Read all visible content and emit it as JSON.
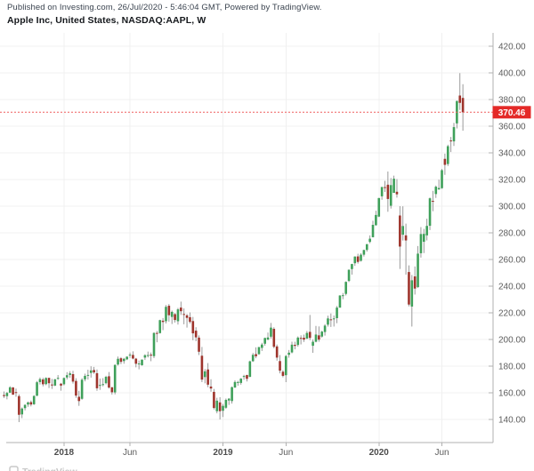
{
  "header": {
    "published_line": "Published on Investing.com, 26/Jul/2020 - 5:46:04 GMT, Powered by TradingView.",
    "title_line": "Apple Inc, United States, NASDAQ:AAPL, W"
  },
  "watermark": "TradingView",
  "price_axis": {
    "tick_labels": [
      "420.00",
      "400.00",
      "380.00",
      "360.00",
      "340.00",
      "320.00",
      "300.00",
      "280.00",
      "260.00",
      "240.00",
      "220.00",
      "200.00",
      "180.00",
      "160.00",
      "140.00"
    ],
    "last_price_label": "370.46"
  },
  "time_axis": {
    "ticks": [
      {
        "label": "2018",
        "week_index": 20,
        "bold": true
      },
      {
        "label": "Jun",
        "week_index": 42,
        "bold": false
      },
      {
        "label": "2019",
        "week_index": 73,
        "bold": true
      },
      {
        "label": "Jun",
        "week_index": 94,
        "bold": false
      },
      {
        "label": "2020",
        "week_index": 125,
        "bold": true
      },
      {
        "label": "Jun",
        "week_index": 146,
        "bold": false
      }
    ]
  },
  "colors": {
    "up_fill": "#3fa05a",
    "down_fill": "#9e342c",
    "wick": "#8f8f8f",
    "grid": "#f0f0f0",
    "axis_line": "#b0b0b0",
    "tick_text": "#5c5c5c",
    "year_text": "#4d4d4d",
    "last_price_line": "#ef5e5e",
    "badge_bg": "#e42a28",
    "badge_text": "#ffffff"
  },
  "chart_data": {
    "type": "candlestick",
    "title": "Apple Inc, United States, NASDAQ:AAPL, W",
    "symbol": "NASDAQ:AAPL",
    "interval": "W",
    "last_price": 370.46,
    "ylim": [
      130,
      430
    ],
    "y_ticks": [
      140,
      160,
      180,
      200,
      220,
      240,
      260,
      280,
      300,
      320,
      340,
      360,
      380,
      400,
      420
    ],
    "x_tick_labels": [
      "2018",
      "Jun",
      "2019",
      "Jun",
      "2020",
      "Jun"
    ],
    "grid": true,
    "legend": "none",
    "candles_format": [
      "open",
      "high",
      "low",
      "close"
    ],
    "candles": [
      [
        158.3,
        161.0,
        156.1,
        157.5
      ],
      [
        157.5,
        160.7,
        155.1,
        159.9
      ],
      [
        160.1,
        164.9,
        159.8,
        164.1
      ],
      [
        164.0,
        164.3,
        158.5,
        158.6
      ],
      [
        160.5,
        163.2,
        157.0,
        159.9
      ],
      [
        157.5,
        158.8,
        138.0,
        143.5
      ],
      [
        143.8,
        149.0,
        141.0,
        148.2
      ],
      [
        148.5,
        151.5,
        146.8,
        150.9
      ],
      [
        151.2,
        153.4,
        149.5,
        152.8
      ],
      [
        153.0,
        154.2,
        149.8,
        151.2
      ],
      [
        151.4,
        158.2,
        150.9,
        157.6
      ],
      [
        157.8,
        168.8,
        157.5,
        167.9
      ],
      [
        168.0,
        171.5,
        166.2,
        170.3
      ],
      [
        170.0,
        171.3,
        164.8,
        166.4
      ],
      [
        166.5,
        171.6,
        165.7,
        171.1
      ],
      [
        171.2,
        171.3,
        163.6,
        167.2
      ],
      [
        166.2,
        170.4,
        162.9,
        165.7
      ],
      [
        165.4,
        170.4,
        165.0,
        170.1
      ],
      [
        171.0,
        173.3,
        169.7,
        171.2
      ],
      [
        166.8,
        167.4,
        161.6,
        165.4
      ],
      [
        166.4,
        171.5,
        165.5,
        171.1
      ],
      [
        171.5,
        175.5,
        170.0,
        173.2
      ],
      [
        173.4,
        176.2,
        171.2,
        174.6
      ],
      [
        174.0,
        176.5,
        166.9,
        168.4
      ],
      [
        168.9,
        170.9,
        156.2,
        157.9
      ],
      [
        157.0,
        161.5,
        150.2,
        153.8
      ],
      [
        155.5,
        171.0,
        154.8,
        169.8
      ],
      [
        170.1,
        174.3,
        168.6,
        172.7
      ],
      [
        172.9,
        177.3,
        169.9,
        173.4
      ],
      [
        174.9,
        179.9,
        171.4,
        176.8
      ],
      [
        177.1,
        179.4,
        174.2,
        175.3
      ],
      [
        174.7,
        177.5,
        161.5,
        163.4
      ],
      [
        165.3,
        170.7,
        162.2,
        165.9
      ],
      [
        166.0,
        171.0,
        164.8,
        166.5
      ],
      [
        167.2,
        172.8,
        166.3,
        172.0
      ],
      [
        172.4,
        175.6,
        163.2,
        163.9
      ],
      [
        164.1,
        164.5,
        158.7,
        160.4
      ],
      [
        160.3,
        181.3,
        158.8,
        180.9
      ],
      [
        181.2,
        187.2,
        180.4,
        185.5
      ],
      [
        185.9,
        186.8,
        181.5,
        183.2
      ],
      [
        183.8,
        186.2,
        181.8,
        185.5
      ],
      [
        185.1,
        187.3,
        184.5,
        187.1
      ],
      [
        188.4,
        190.2,
        186.2,
        188.6
      ],
      [
        188.4,
        191.1,
        185.1,
        185.7
      ],
      [
        185.6,
        186.2,
        179.1,
        181.8
      ],
      [
        181.8,
        184.2,
        177.6,
        182.0
      ],
      [
        180.7,
        184.9,
        180.3,
        184.9
      ],
      [
        186.4,
        188.9,
        184.6,
        188.2
      ],
      [
        188.0,
        190.9,
        186.5,
        188.3
      ],
      [
        188.6,
        190.2,
        183.7,
        187.9
      ],
      [
        187.5,
        205.3,
        186.0,
        204.9
      ],
      [
        204.9,
        206.4,
        197.9,
        204.4
      ],
      [
        204.8,
        214.8,
        204.4,
        214.5
      ],
      [
        214.1,
        216.1,
        207.0,
        213.1
      ],
      [
        213.7,
        225.8,
        212.0,
        224.5
      ],
      [
        225.3,
        226.6,
        213.4,
        218.2
      ],
      [
        216.9,
        221.7,
        211.6,
        220.7
      ],
      [
        219.0,
        219.8,
        212.7,
        214.6
      ],
      [
        213.7,
        223.7,
        211.2,
        222.6
      ],
      [
        223.9,
        228.4,
        218.4,
        221.2
      ],
      [
        219.1,
        223.3,
        211.4,
        219.0
      ],
      [
        218.1,
        219.1,
        208.9,
        216.2
      ],
      [
        216.7,
        220.3,
        212.0,
        213.2
      ],
      [
        213.8,
        216.9,
        199.4,
        204.6
      ],
      [
        206.6,
        209.2,
        198.7,
        201.6
      ],
      [
        201.4,
        203.1,
        188.3,
        190.8
      ],
      [
        187.8,
        194.4,
        168.0,
        169.9
      ],
      [
        171.8,
        177.8,
        167.1,
        176.1
      ],
      [
        177.5,
        182.3,
        164.2,
        166.1
      ],
      [
        164.7,
        170.2,
        160.8,
        163.2
      ],
      [
        160.7,
        162.9,
        147.5,
        148.6
      ],
      [
        146.2,
        156.3,
        144.6,
        154.1
      ],
      [
        152.8,
        156.7,
        140.0,
        146.2
      ],
      [
        146.5,
        151.7,
        141.8,
        150.2
      ],
      [
        148.8,
        155.7,
        147.9,
        154.7
      ],
      [
        154.2,
        156.0,
        150.9,
        155.6
      ],
      [
        153.8,
        164.7,
        151.9,
        164.2
      ],
      [
        164.0,
        169.3,
        163.6,
        168.1
      ],
      [
        167.8,
        169.0,
        165.3,
        168.1
      ],
      [
        167.4,
        171.0,
        166.1,
        170.6
      ],
      [
        171.9,
        173.5,
        169.8,
        172.6
      ],
      [
        173.3,
        173.6,
        168.5,
        170.5
      ],
      [
        172.0,
        184.1,
        171.6,
        183.6
      ],
      [
        183.7,
        189.9,
        183.2,
        188.5
      ],
      [
        189.0,
        194.1,
        185.9,
        187.4
      ],
      [
        189.0,
        194.4,
        188.5,
        194.3
      ],
      [
        193.7,
        197.5,
        191.4,
        196.2
      ],
      [
        196.8,
        201.4,
        195.3,
        201.1
      ],
      [
        200.0,
        205.2,
        199.3,
        201.5
      ],
      [
        202.1,
        212.4,
        200.7,
        208.9
      ],
      [
        208.0,
        209.2,
        193.4,
        194.5
      ],
      [
        194.8,
        196.2,
        184.1,
        186.4
      ],
      [
        183.8,
        188.3,
        174.6,
        176.6
      ],
      [
        175.8,
        177.0,
        171.6,
        172.7
      ],
      [
        173.2,
        188.3,
        168.0,
        187.6
      ],
      [
        188.5,
        192.1,
        186.3,
        190.1
      ],
      [
        190.3,
        198.3,
        189.6,
        196.1
      ],
      [
        196.0,
        198.3,
        192.6,
        195.2
      ],
      [
        195.9,
        202.3,
        194.6,
        201.4
      ],
      [
        201.2,
        203.1,
        196.3,
        200.5
      ],
      [
        201.3,
        203.7,
        198.2,
        199.9
      ],
      [
        200.7,
        206.4,
        200.2,
        204.9
      ],
      [
        205.7,
        218.4,
        199.5,
        201.2
      ],
      [
        195.3,
        199.9,
        190.0,
        198.3
      ],
      [
        198.3,
        210.2,
        197.8,
        203.7
      ],
      [
        203.1,
        209.8,
        198.3,
        199.9
      ],
      [
        202.2,
        206.5,
        201.4,
        205.9
      ],
      [
        205.6,
        211.5,
        202.9,
        210.4
      ],
      [
        211.1,
        217.8,
        209.7,
        215.8
      ],
      [
        215.1,
        219.5,
        209.4,
        214.8
      ],
      [
        215.2,
        218.0,
        209.7,
        215.8
      ],
      [
        216.0,
        225.1,
        212.2,
        223.9
      ],
      [
        223.9,
        233.2,
        223.8,
        233.0
      ],
      [
        233.2,
        234.9,
        230.2,
        233.2
      ],
      [
        234.2,
        243.6,
        233.0,
        243.2
      ],
      [
        243.9,
        252.5,
        243.1,
        252.3
      ],
      [
        252.8,
        256.8,
        248.6,
        256.6
      ],
      [
        257.2,
        262.4,
        255.2,
        262.2
      ],
      [
        262.3,
        264.3,
        256.9,
        258.2
      ],
      [
        259.0,
        264.7,
        258.4,
        263.6
      ],
      [
        263.6,
        267.4,
        262.2,
        267.1
      ],
      [
        267.2,
        271.6,
        265.9,
        271.5
      ],
      [
        273.2,
        278.1,
        272.2,
        275.6
      ],
      [
        276.7,
        289.1,
        276.6,
        286.0
      ],
      [
        285.7,
        296.6,
        285.4,
        293.4
      ],
      [
        292.2,
        306.2,
        291.8,
        306.1
      ],
      [
        307.4,
        314.4,
        304.8,
        314.4
      ],
      [
        314.3,
        319.0,
        310.7,
        314.0
      ],
      [
        316.1,
        326.0,
        295.8,
        305.4
      ],
      [
        300.3,
        321.1,
        298.2,
        315.8
      ],
      [
        310.0,
        322.9,
        309.9,
        320.6
      ],
      [
        310.8,
        320.3,
        306.4,
        308.9
      ],
      [
        293.0,
        300.0,
        252.9,
        269.7
      ],
      [
        278.6,
        299.9,
        274.2,
        285.1
      ],
      [
        278.1,
        286.9,
        248.6,
        274.3
      ],
      [
        250.6,
        255.6,
        224.8,
        226.2
      ],
      [
        224.7,
        248.4,
        209.7,
        244.4
      ],
      [
        247.3,
        254.8,
        233.7,
        238.2
      ],
      [
        239.3,
        270.1,
        238.7,
        264.4
      ],
      [
        264.7,
        284.3,
        261.4,
        279.1
      ],
      [
        273.3,
        283.0,
        264.8,
        279.2
      ],
      [
        278.1,
        290.6,
        274.3,
        285.2
      ],
      [
        285.3,
        306.5,
        282.1,
        305.9
      ],
      [
        304.0,
        311.5,
        296.2,
        303.6
      ],
      [
        309.1,
        315.5,
        306.2,
        314.6
      ],
      [
        312.6,
        319.9,
        312.3,
        313.6
      ],
      [
        313.5,
        327.9,
        313.0,
        327.0
      ],
      [
        335.5,
        339.4,
        323.5,
        331.0
      ],
      [
        331.6,
        346.1,
        330.1,
        345.0
      ],
      [
        349.3,
        351.9,
        340.6,
        348.9
      ],
      [
        348.6,
        362.5,
        345.2,
        359.3
      ],
      [
        362.1,
        379.2,
        358.3,
        378.9
      ],
      [
        383.0,
        399.8,
        372.2,
        377.5
      ],
      [
        381.2,
        391.5,
        356.6,
        370.46
      ]
    ]
  }
}
